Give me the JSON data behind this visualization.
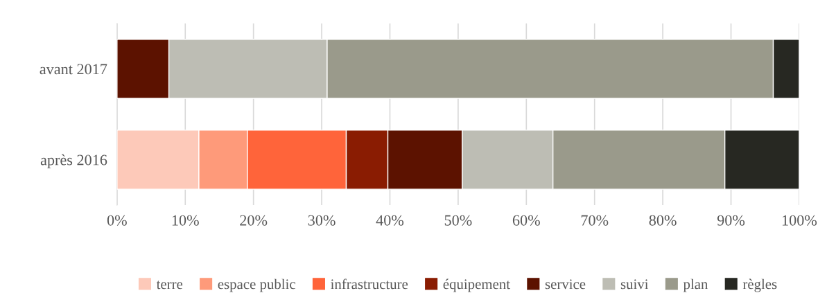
{
  "chart_data": {
    "type": "bar",
    "orientation": "horizontal",
    "stacked": true,
    "categories": [
      "avant 2017",
      "après 2016"
    ],
    "series": [
      {
        "name": "terre",
        "color": "#fdc9b9",
        "values": [
          0,
          12.0
        ]
      },
      {
        "name": "espace public",
        "color": "#fe9a7a",
        "values": [
          0,
          7.1
        ]
      },
      {
        "name": "infrastructure",
        "color": "#ff643a",
        "values": [
          0,
          14.5
        ]
      },
      {
        "name": "équipement",
        "color": "#8a1c02",
        "values": [
          0,
          6.1
        ]
      },
      {
        "name": "service",
        "color": "#5c1200",
        "values": [
          7.6,
          10.9
        ]
      },
      {
        "name": "suivi",
        "color": "#bdbdb4",
        "values": [
          23.2,
          13.3
        ]
      },
      {
        "name": "plan",
        "color": "#9a9a8b",
        "values": [
          65.4,
          25.2
        ]
      },
      {
        "name": "règles",
        "color": "#272822",
        "values": [
          3.8,
          10.9
        ]
      }
    ],
    "xlim": [
      0,
      100
    ],
    "xticks": [
      {
        "value": 0,
        "label": "0%"
      },
      {
        "value": 10,
        "label": "10%"
      },
      {
        "value": 20,
        "label": "20%"
      },
      {
        "value": 30,
        "label": "30%"
      },
      {
        "value": 40,
        "label": "40%"
      },
      {
        "value": 50,
        "label": "50%"
      },
      {
        "value": 60,
        "label": "60%"
      },
      {
        "value": 70,
        "label": "70%"
      },
      {
        "value": 80,
        "label": "80%"
      },
      {
        "value": 90,
        "label": "90%"
      },
      {
        "value": 100,
        "label": "100%"
      }
    ],
    "grid": "x",
    "legend": "bottom"
  }
}
